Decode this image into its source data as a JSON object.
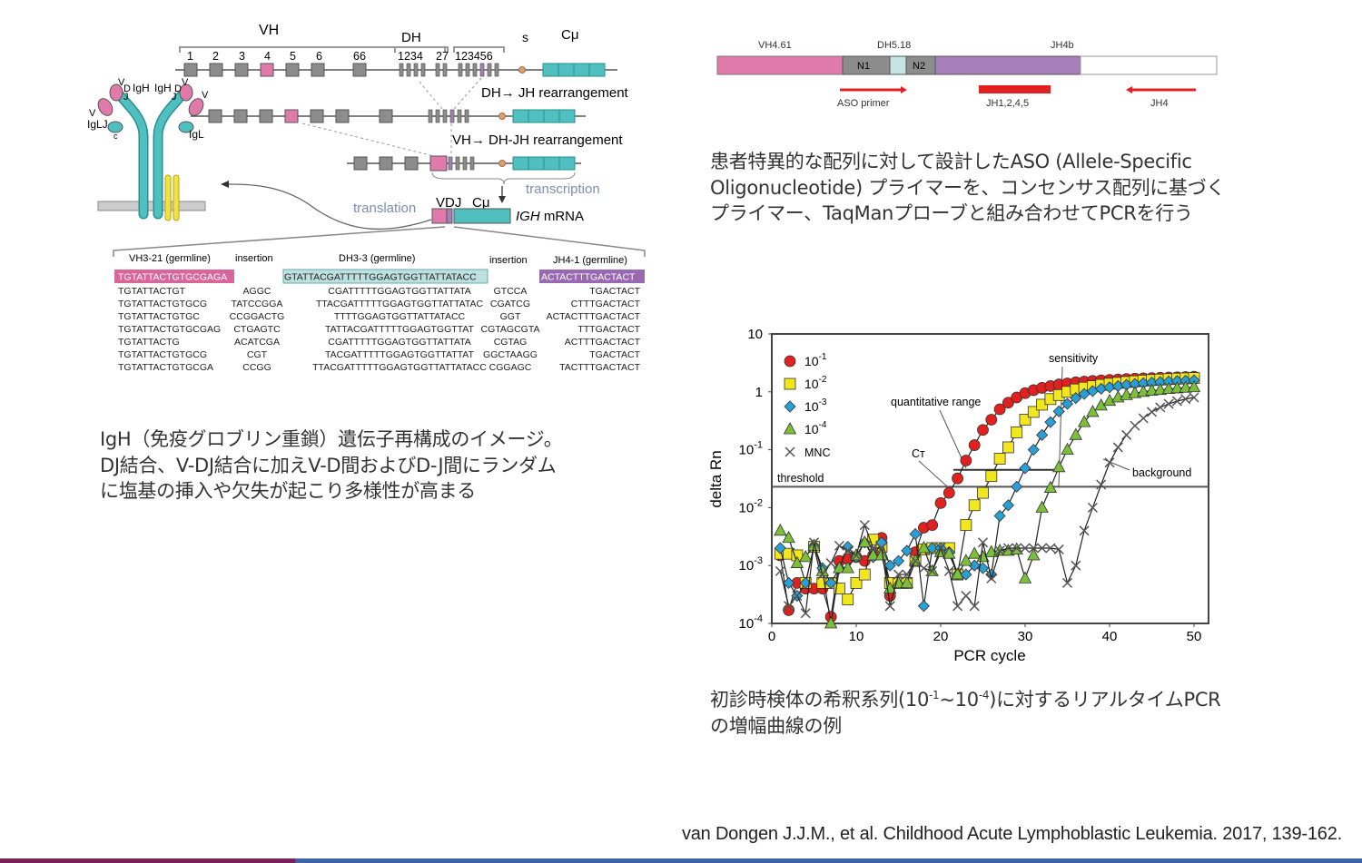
{
  "igh_diagram": {
    "vh_label": "VH",
    "vh_numbers": [
      "1",
      "2",
      "3",
      "4",
      "5",
      "6",
      "66"
    ],
    "dh_label": "DH",
    "dh_numbers_a": "1234",
    "dh_numbers_b": "27",
    "jh_numbers": "123456",
    "s_label": "s",
    "cmu_label": "Cμ",
    "dh_jh_step": "DH→ JH rearrangement",
    "vh_dhjh_step": "VH→ DH-JH rearrangement",
    "transcription": "transcription",
    "translation": "translation",
    "vdj_label": "VDJ",
    "mrna_cmu_label": "Cμ",
    "mrna_label_italic": "IGH",
    "mrna_label": " mRNA",
    "antibody_labels": {
      "v1": "V",
      "d1": "D",
      "igh1": "IgH",
      "igh2": "IgH",
      "d2": "D",
      "v2": "V",
      "j1": "J",
      "j2": "J",
      "v3": "V",
      "v4": "V",
      "igl1": "IgLJ",
      "igl2": "IgL",
      "c": "c"
    }
  },
  "sequence_table": {
    "headers": [
      "VH3-21 (germline)",
      "insertion",
      "DH3-3 (germline)",
      "insertion",
      "JH4-1 (germline)"
    ],
    "germline": {
      "v": "TGTATTACTGTGCGAGA",
      "d": "GTATTACGATTTTTGGAGTGGTTATTATACC",
      "j": "ACTACTTTGACTACT"
    },
    "rows": [
      [
        "TGTATTACTGT",
        "AGGC",
        "CGATTTTTGGAGTGGTTATTATA",
        "GTCCA",
        "TGACTACT"
      ],
      [
        "TGTATTACTGTGCG",
        "TATCCGGA",
        "TTACGATTTTTGGAGTGGTTATTATAC",
        "CGATCG",
        "CTTTGACTACT"
      ],
      [
        "TGTATTACTGTGC",
        "CCGGACTG",
        "TTTTGGAGTGGTTATTATACC",
        "GGT",
        "ACTACTTTGACTACT"
      ],
      [
        "TGTATTACTGTGCGAG",
        "CTGAGTC",
        "TATTACGATTTTTGGAGTGGTTAT",
        "CGTAGCGTA",
        "TTTGACTACT"
      ],
      [
        "TGTATTACTG",
        "ACATCGA",
        "CGATTTTTGGAGTGGTTATTATA",
        "CGTAG",
        "ACTTTGACTACT"
      ],
      [
        "TGTATTACTGTGCG",
        "CGT",
        "TACGATTTTTGGAGTGGTTATTAT",
        "GGCTAAGG",
        "TGACTACT"
      ],
      [
        "TGTATTACTGTGCGA",
        "CCGG",
        "TTACGATTTTTGGAGTGGTTATTATACC",
        "CGGAGC",
        "TACTTTGACTACT"
      ]
    ]
  },
  "left_caption": [
    "IgH（免疫グロブリン重鎖）遺伝子再構成のイメージ。",
    "DJ結合、V-DJ結合に加えV-D間およびD-J間にランダム",
    "に塩基の挿入や欠失が起こり多様性が高まる"
  ],
  "aso_diagram": {
    "segment_labels": [
      "VH4.61",
      "DH5.18",
      "JH4b"
    ],
    "n1": "N1",
    "n2": "N2",
    "primers": [
      "ASO primer",
      "JH1,2,4,5",
      "JH4"
    ]
  },
  "right_caption": [
    "患者特異的な配列に対して設計したASO (Allele-Specific",
    "Oligonucleotide) プライマーを、コンセンサス配列に基づく",
    "プライマー、TaqManプローブと組み合わせてPCRを行う"
  ],
  "chart_data": {
    "type": "scatter",
    "xlabel": "PCR cycle",
    "ylabel": "delta Rn",
    "xlim": [
      0,
      50
    ],
    "ylim": [
      0.0001,
      10
    ],
    "y_scale": "log",
    "x_ticks": [
      "0",
      "10",
      "20",
      "30",
      "40",
      "50"
    ],
    "y_ticks": [
      {
        "base": "10",
        "exp": ""
      },
      {
        "base": "1",
        "exp": ""
      },
      {
        "base": "10",
        "exp": "-1"
      },
      {
        "base": "10",
        "exp": "-2"
      },
      {
        "base": "10",
        "exp": "-3"
      },
      {
        "base": "10",
        "exp": "-4"
      }
    ],
    "legend_position": "top-left",
    "threshold": 0.023,
    "annotations": {
      "threshold": "threshold",
      "quantitative_range": "quantitative range",
      "sensitivity": "sensitivity",
      "ct": "Cт",
      "background": "background"
    },
    "x": [
      1,
      2,
      3,
      4,
      5,
      6,
      7,
      8,
      9,
      10,
      11,
      12,
      13,
      14,
      15,
      16,
      17,
      18,
      19,
      20,
      21,
      22,
      23,
      24,
      25,
      26,
      27,
      28,
      29,
      30,
      31,
      32,
      33,
      34,
      35,
      36,
      37,
      38,
      39,
      40,
      41,
      42,
      43,
      44,
      45,
      46,
      47,
      48,
      49,
      50
    ],
    "series": [
      {
        "name": "10",
        "exp": "-1",
        "marker": "circle",
        "color": "#e0211f",
        "values": [
          0.0015,
          0.00017,
          0.0005,
          0.0004,
          0.0004,
          0.0004,
          0.00013,
          0.0012,
          0.0013,
          0.0014,
          0.0012,
          0.0015,
          0.003,
          0.0003,
          0.0005,
          0.0005,
          0.0017,
          0.0045,
          0.005,
          0.012,
          0.018,
          0.032,
          0.065,
          0.12,
          0.22,
          0.33,
          0.5,
          0.65,
          0.8,
          0.95,
          1.07,
          1.17,
          1.26,
          1.34,
          1.4,
          1.46,
          1.5,
          1.54,
          1.58,
          1.61,
          1.64,
          1.67,
          1.69,
          1.71,
          1.73,
          1.75,
          1.77,
          1.78,
          1.8,
          1.82
        ]
      },
      {
        "name": "10",
        "exp": "-2",
        "marker": "square",
        "color": "#f2e61c",
        "values": [
          0.0016,
          0.0016,
          0.0015,
          0.0005,
          0.0021,
          0.0005,
          0.0005,
          0.0004,
          0.00026,
          0.0005,
          0.0007,
          0.0028,
          0.0021,
          0.0005,
          0.0005,
          0.0005,
          0.0012,
          0.0019,
          0.002,
          0.002,
          0.002,
          0.0007,
          0.005,
          0.011,
          0.018,
          0.035,
          0.07,
          0.11,
          0.2,
          0.33,
          0.45,
          0.6,
          0.75,
          0.88,
          1.0,
          1.1,
          1.18,
          1.25,
          1.32,
          1.38,
          1.43,
          1.48,
          1.52,
          1.56,
          1.6,
          1.63,
          1.66,
          1.69,
          1.71,
          1.73
        ]
      },
      {
        "name": "10",
        "exp": "-3",
        "marker": "diamond",
        "color": "#2a9fd6",
        "values": [
          0.002,
          0.0005,
          0.0003,
          0.0005,
          0.0022,
          0.0009,
          0.0005,
          0.0009,
          0.0021,
          0.0014,
          0.0025,
          0.0014,
          0.0025,
          0.001,
          0.0012,
          0.0018,
          0.0035,
          0.0002,
          0.002,
          0.002,
          0.0017,
          0.0007,
          0.0007,
          0.001,
          0.0009,
          0.0007,
          0.0072,
          0.011,
          0.023,
          0.048,
          0.1,
          0.18,
          0.3,
          0.46,
          0.62,
          0.78,
          0.92,
          1.03,
          1.13,
          1.2,
          1.26,
          1.32,
          1.37,
          1.41,
          1.45,
          1.48,
          1.51,
          1.54,
          1.56,
          1.58
        ]
      },
      {
        "name": "10",
        "exp": "-4",
        "marker": "triangle",
        "color": "#7cbf3a",
        "values": [
          0.004,
          0.003,
          0.0011,
          0.0014,
          0.0022,
          0.0008,
          0.0001,
          0.0009,
          0.0009,
          0.0015,
          0.0025,
          0.0015,
          0.0015,
          0.0004,
          0.0005,
          0.0005,
          0.0012,
          0.002,
          0.0008,
          0.0017,
          0.0016,
          0.0007,
          0.0012,
          0.0016,
          0.0014,
          0.0017,
          0.0018,
          0.0018,
          0.0019,
          0.0006,
          0.0015,
          0.01,
          0.022,
          0.05,
          0.1,
          0.18,
          0.3,
          0.45,
          0.58,
          0.7,
          0.8,
          0.88,
          0.95,
          1.0,
          1.05,
          1.08,
          1.12,
          1.15,
          1.18,
          1.2
        ]
      },
      {
        "name": "MNC",
        "exp": "",
        "marker": "x",
        "color": "#555555",
        "values": [
          0.0008,
          0.0002,
          0.0003,
          0.00015,
          0.0025,
          0.0007,
          0.0011,
          0.0022,
          0.0018,
          0.0015,
          0.005,
          0.002,
          0.002,
          0.0002,
          0.0007,
          0.0007,
          0.0012,
          0.0009,
          0.0008,
          0.002,
          0.0008,
          0.0002,
          0.0003,
          0.0002,
          0.0025,
          0.0006,
          0.0018,
          0.002,
          0.002,
          0.002,
          0.002,
          0.002,
          0.002,
          0.0019,
          0.0005,
          0.001,
          0.004,
          0.01,
          0.025,
          0.06,
          0.11,
          0.18,
          0.26,
          0.35,
          0.45,
          0.54,
          0.62,
          0.69,
          0.75,
          0.8
        ]
      }
    ]
  },
  "chart_caption": {
    "line1_a": "初診時検体の希釈系列(10",
    "sup1": "-1",
    "tilde": "~10",
    "sup2": "-4",
    "line1_b": ")に対するリアルタイムPCR",
    "line2": "の増幅曲線の例"
  },
  "citation": "van  Dongen J.J.M.,  et al.  Childhood  Acute  Lymphoblastic  Leukemia. 2017,  139-162.",
  "colors": {
    "pink": "#e07aaa",
    "teal": "#4fbfbf",
    "gray": "#8c8c8c",
    "purple": "#a77fb8",
    "red": "#e0211f",
    "footer_left": "#7a1e5c",
    "footer_right": "#3e63a8"
  }
}
